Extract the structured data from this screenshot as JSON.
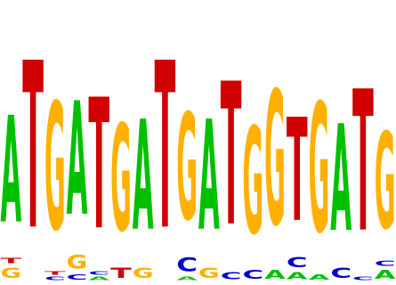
{
  "colors": {
    "A": "#00c000",
    "C": "#0000d0",
    "G": "#ffb000",
    "T": "#d00000"
  },
  "columns": [
    {
      "letters": [
        {
          "b": "G",
          "h": 0.06
        },
        {
          "b": "T",
          "h": 0.03
        },
        {
          "b": "A",
          "h": 0.62
        }
      ]
    },
    {
      "letters": [
        {
          "b": "T",
          "h": 0.97
        }
      ]
    },
    {
      "letters": [
        {
          "b": "C",
          "h": 0.02
        },
        {
          "b": "T",
          "h": 0.02
        },
        {
          "b": "G",
          "h": 0.74
        }
      ]
    },
    {
      "letters": [
        {
          "b": "C",
          "h": 0.03
        },
        {
          "b": "G",
          "h": 0.08
        },
        {
          "b": "A",
          "h": 0.66
        }
      ]
    },
    {
      "letters": [
        {
          "b": "A",
          "h": 0.02
        },
        {
          "b": "C",
          "h": 0.02
        },
        {
          "b": "T",
          "h": 0.76
        }
      ]
    },
    {
      "letters": [
        {
          "b": "T",
          "h": 0.06
        },
        {
          "b": "G",
          "h": 0.62
        }
      ]
    },
    {
      "letters": [
        {
          "b": "G",
          "h": 0.06
        },
        {
          "b": "A",
          "h": 0.64
        }
      ]
    },
    {
      "letters": [
        {
          "b": "T",
          "h": 0.97
        }
      ]
    },
    {
      "letters": [
        {
          "b": "A",
          "h": 0.02
        },
        {
          "b": "C",
          "h": 0.08
        },
        {
          "b": "G",
          "h": 0.62
        }
      ]
    },
    {
      "letters": [
        {
          "b": "G",
          "h": 0.06
        },
        {
          "b": "A",
          "h": 0.64
        }
      ]
    },
    {
      "letters": [
        {
          "b": "C",
          "h": 0.04
        },
        {
          "b": "T",
          "h": 0.83
        }
      ]
    },
    {
      "letters": [
        {
          "b": "C",
          "h": 0.05
        },
        {
          "b": "G",
          "h": 0.62
        }
      ]
    },
    {
      "letters": [
        {
          "b": "A",
          "h": 0.05
        },
        {
          "b": "G",
          "h": 0.78
        }
      ]
    },
    {
      "letters": [
        {
          "b": "A",
          "h": 0.04
        },
        {
          "b": "C",
          "h": 0.06
        },
        {
          "b": "T",
          "h": 0.6
        }
      ]
    },
    {
      "letters": [
        {
          "b": "A",
          "h": 0.03
        },
        {
          "b": "G",
          "h": 0.75
        }
      ]
    },
    {
      "letters": [
        {
          "b": "C",
          "h": 0.06
        },
        {
          "b": "A",
          "h": 0.62
        }
      ]
    },
    {
      "letters": [
        {
          "b": "C",
          "h": 0.02
        },
        {
          "b": "T",
          "h": 0.82
        }
      ]
    },
    {
      "letters": [
        {
          "b": "A",
          "h": 0.05
        },
        {
          "b": "C",
          "h": 0.03
        },
        {
          "b": "G",
          "h": 0.56
        }
      ]
    }
  ]
}
